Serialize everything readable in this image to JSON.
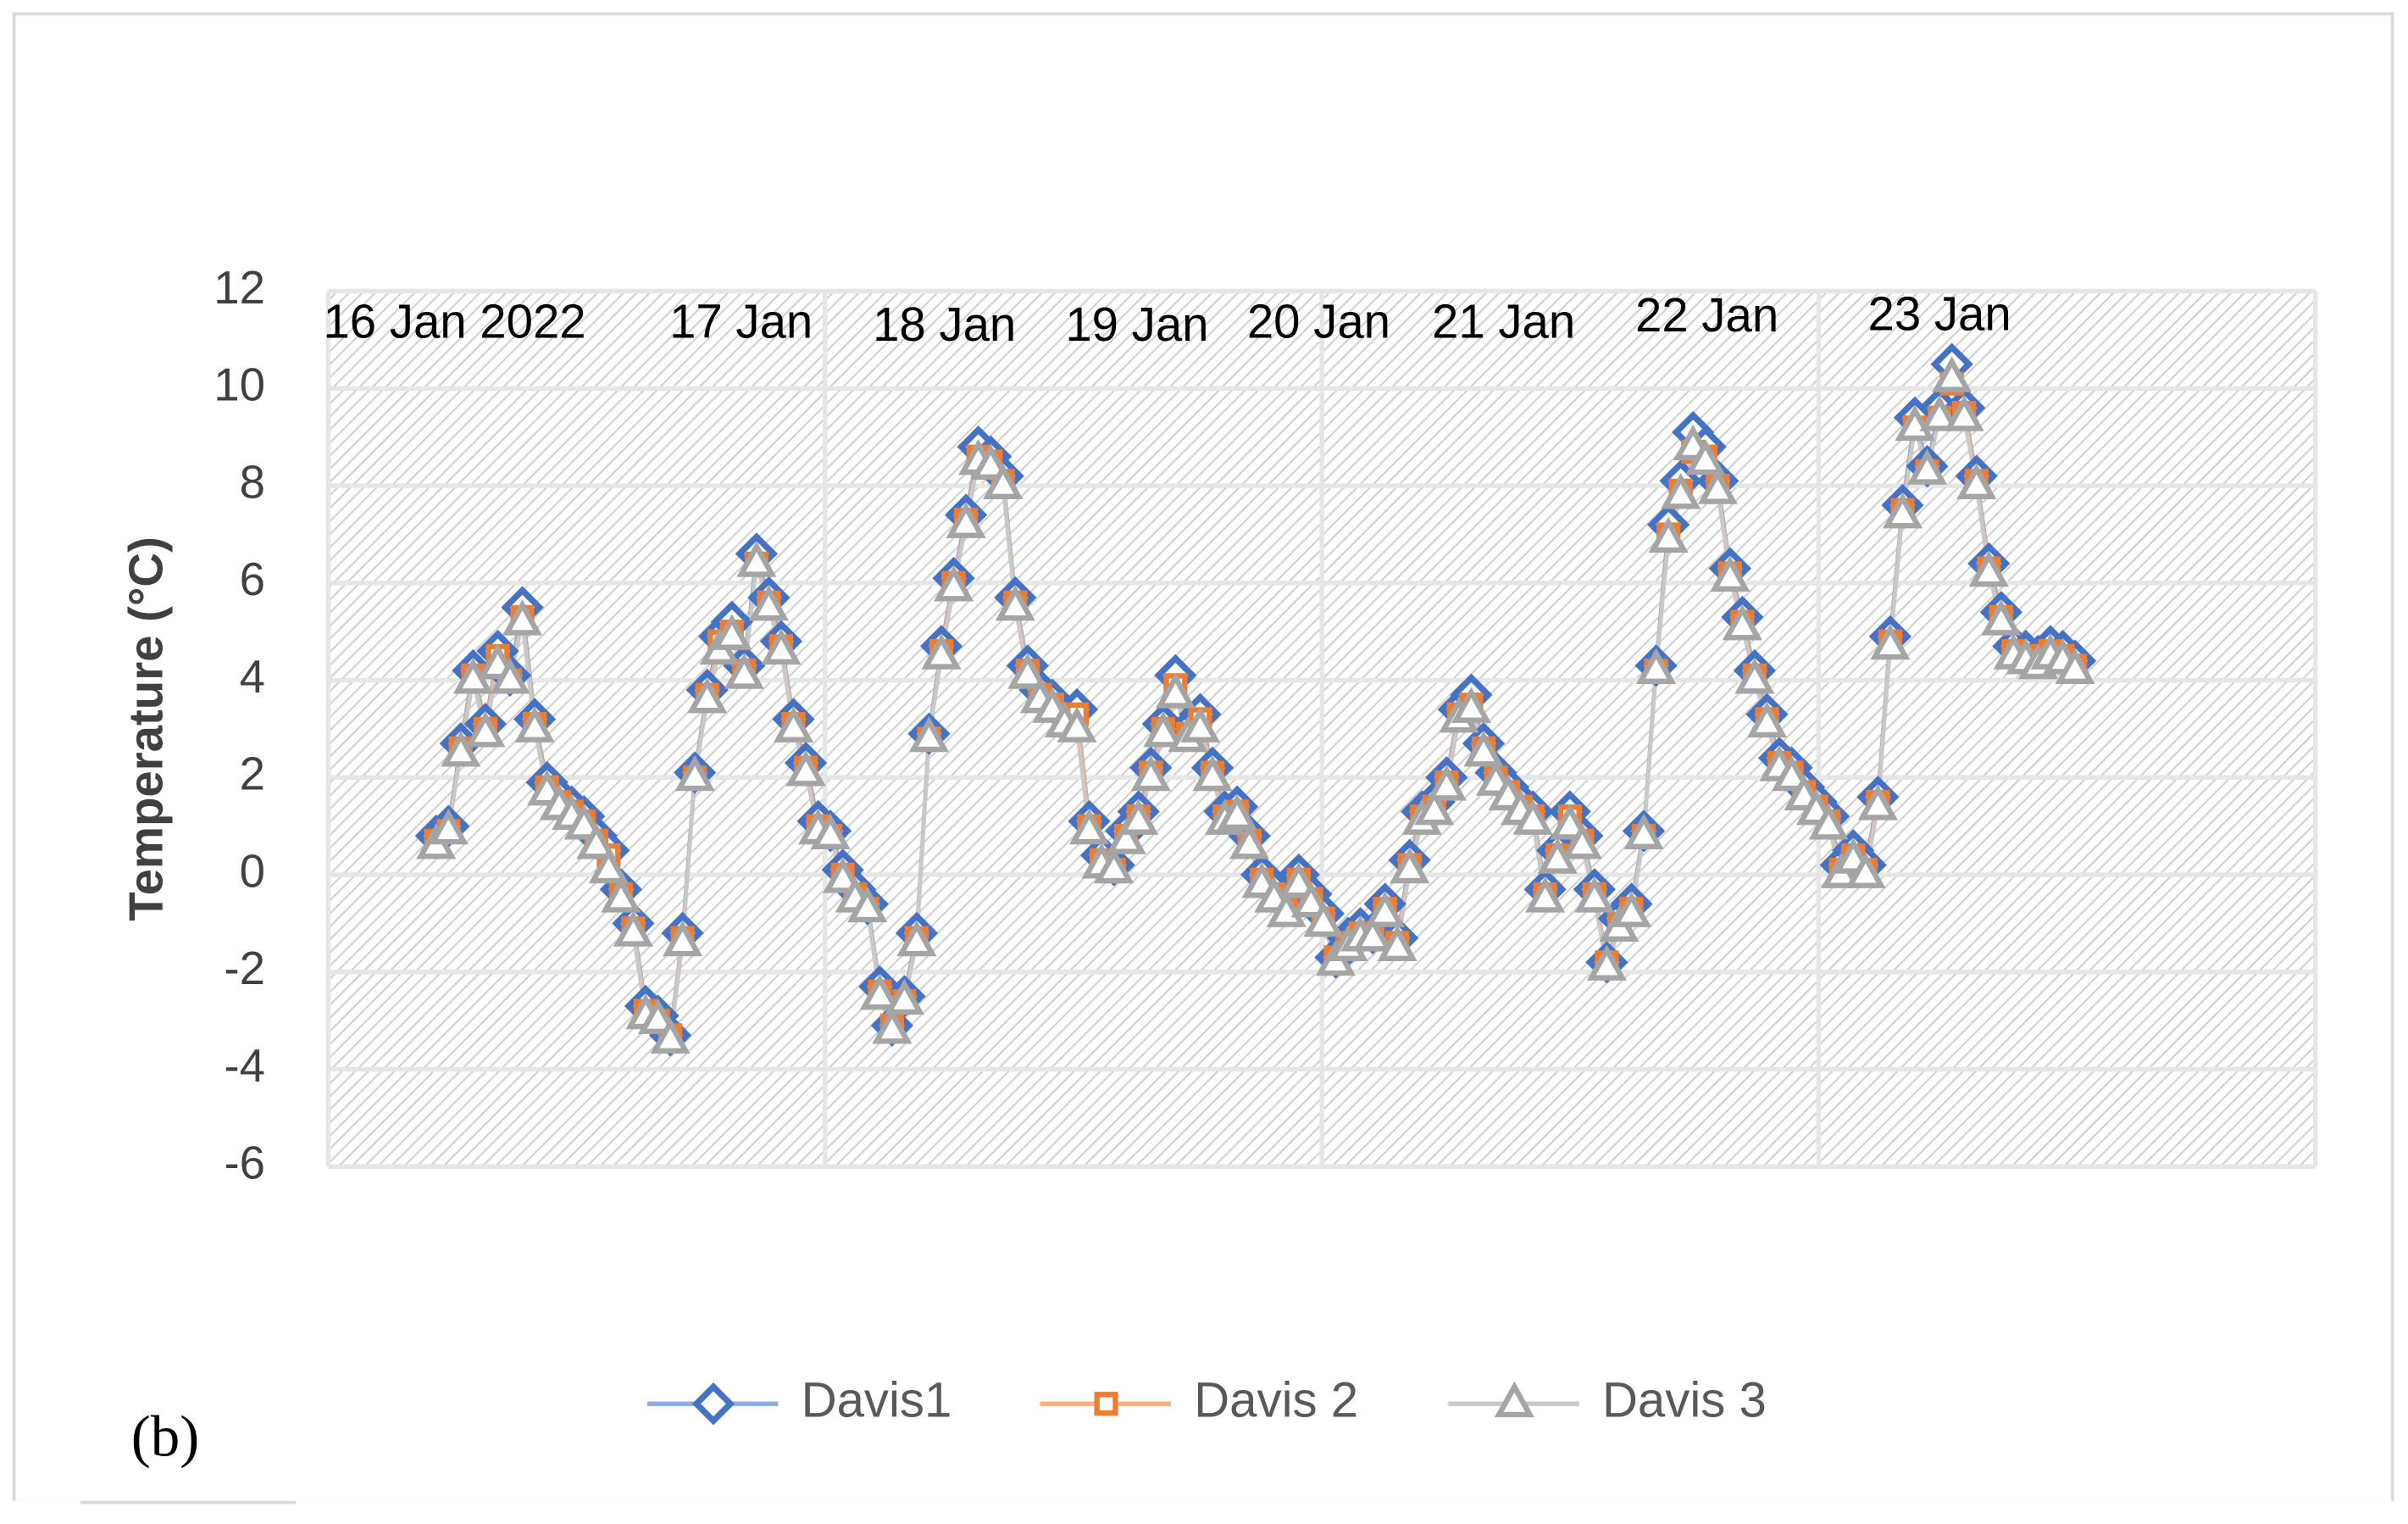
{
  "chart_data": {
    "type": "line",
    "y_label": "Temperature (°C)",
    "panel_label": "(b)",
    "annotations": [
      "16 Jan 2022",
      "17 Jan",
      "18 Jan",
      "19 Jan",
      "20 Jan",
      "21 Jan",
      "22 Jan",
      "23 Jan"
    ],
    "x": [
      0,
      1,
      2,
      3,
      4,
      5,
      6,
      7,
      8,
      9,
      10,
      11,
      12,
      13,
      14,
      15,
      16,
      17,
      18,
      19,
      20,
      21,
      22,
      23,
      24,
      25,
      26,
      27,
      28,
      29,
      30,
      31,
      32,
      33,
      34,
      35,
      36,
      37,
      38,
      39,
      40,
      41,
      42,
      43,
      44,
      45,
      46,
      47,
      48,
      49,
      50,
      51,
      52,
      53,
      54,
      55,
      56,
      57,
      58,
      59,
      60,
      61,
      62,
      63,
      64,
      65,
      66,
      67,
      68,
      69,
      70,
      71,
      72,
      73,
      74,
      75,
      76,
      77,
      78,
      79,
      80,
      81,
      82,
      83,
      84,
      85,
      86,
      87,
      88,
      89,
      90,
      91,
      92,
      93,
      94,
      95,
      96,
      97,
      98,
      99,
      100,
      101,
      102,
      103,
      104,
      105,
      106,
      107,
      108,
      109,
      110,
      111,
      112,
      113,
      114,
      115,
      116,
      117,
      118,
      119,
      120,
      121,
      122,
      123,
      124,
      125,
      126,
      127,
      128,
      129,
      130,
      131,
      132,
      133
    ],
    "xlim": [
      -8.75,
      152.5
    ],
    "xticks": [
      -8.75,
      31.56,
      71.88,
      112.19,
      152.5
    ],
    "ylim": [
      -6,
      12
    ],
    "yticks": [
      -6,
      -4,
      -2,
      0,
      2,
      4,
      6,
      8,
      10,
      12
    ],
    "grid": true,
    "legend": "bottom",
    "series": [
      {
        "name": "Davis1",
        "color": "#4472c4",
        "line_color": "#8faadc",
        "marker": "diamond",
        "values": [
          0.8,
          1.0,
          2.7,
          4.2,
          3.1,
          4.6,
          4.1,
          5.5,
          3.2,
          1.9,
          1.6,
          1.4,
          1.2,
          0.8,
          0.5,
          -0.3,
          -1.0,
          -2.7,
          -2.9,
          -3.3,
          -1.2,
          2.1,
          3.8,
          4.9,
          5.2,
          4.3,
          6.6,
          5.7,
          4.8,
          3.2,
          2.3,
          1.1,
          0.9,
          0.1,
          -0.3,
          -0.6,
          -2.3,
          -3.1,
          -2.5,
          -1.2,
          2.9,
          4.7,
          6.1,
          7.4,
          8.8,
          8.6,
          8.2,
          5.7,
          4.3,
          3.8,
          3.6,
          3.3,
          3.4,
          1.1,
          0.4,
          0.2,
          0.9,
          1.3,
          2.2,
          3.1,
          4.1,
          3.0,
          3.3,
          2.2,
          1.3,
          1.4,
          0.8,
          0.0,
          -0.3,
          -0.6,
          0.0,
          -0.4,
          -0.8,
          -1.7,
          -1.3,
          -1.1,
          -1.2,
          -0.6,
          -1.3,
          0.3,
          1.3,
          1.5,
          2.0,
          3.4,
          3.7,
          2.7,
          2.1,
          1.8,
          1.5,
          1.3,
          -0.3,
          0.5,
          1.3,
          0.8,
          -0.3,
          -1.8,
          -0.9,
          -0.6,
          0.9,
          4.3,
          7.2,
          8.1,
          9.1,
          8.8,
          8.1,
          6.3,
          5.3,
          4.2,
          3.3,
          2.4,
          2.2,
          1.8,
          1.5,
          1.2,
          0.2,
          0.5,
          0.2,
          1.6,
          4.9,
          7.6,
          9.4,
          8.4,
          9.6,
          10.5,
          9.6,
          8.2,
          6.4,
          5.4,
          4.7,
          4.6,
          4.5,
          4.7,
          4.6,
          4.4
        ]
      },
      {
        "name": "Davis 2",
        "color": "#ed7d31",
        "line_color": "#f4b183",
        "marker": "square",
        "values": [
          0.7,
          0.9,
          2.6,
          4.1,
          3.0,
          4.5,
          4.0,
          5.3,
          3.1,
          1.8,
          1.5,
          1.3,
          1.1,
          0.7,
          0.4,
          -0.4,
          -1.1,
          -2.8,
          -3.0,
          -3.3,
          -1.3,
          2.0,
          3.7,
          4.8,
          5.0,
          4.2,
          6.4,
          5.6,
          4.7,
          3.1,
          2.2,
          1.0,
          0.8,
          0.0,
          -0.4,
          -0.7,
          -2.4,
          -3.1,
          -2.6,
          -1.3,
          2.8,
          4.6,
          6.0,
          7.3,
          8.6,
          8.5,
          8.1,
          5.6,
          4.2,
          3.7,
          3.5,
          3.2,
          3.3,
          1.0,
          0.3,
          0.1,
          0.8,
          1.2,
          2.1,
          3.0,
          3.9,
          2.9,
          3.2,
          2.1,
          1.2,
          1.3,
          0.7,
          -0.1,
          -0.4,
          -0.7,
          -0.1,
          -0.5,
          -0.9,
          -1.7,
          -1.4,
          -1.2,
          -1.2,
          -0.7,
          -1.4,
          0.2,
          1.2,
          1.4,
          1.9,
          3.3,
          3.5,
          2.6,
          2.0,
          1.7,
          1.4,
          1.2,
          -0.4,
          0.4,
          1.2,
          0.7,
          -0.4,
          -1.8,
          -1.0,
          -0.7,
          0.8,
          4.2,
          7.0,
          7.9,
          8.7,
          8.6,
          8.0,
          6.2,
          5.2,
          4.1,
          3.2,
          2.3,
          2.1,
          1.7,
          1.4,
          1.1,
          0.1,
          0.4,
          0.1,
          1.5,
          4.8,
          7.5,
          9.2,
          8.3,
          9.4,
          10.1,
          9.5,
          8.1,
          6.3,
          5.3,
          4.6,
          4.5,
          4.4,
          4.6,
          4.5,
          4.3
        ]
      },
      {
        "name": "Davis 3",
        "color": "#a5a5a5",
        "line_color": "#c9c9c9",
        "marker": "triangle",
        "values": [
          0.6,
          0.9,
          2.5,
          4.0,
          2.9,
          4.3,
          4.0,
          5.2,
          3.0,
          1.7,
          1.4,
          1.2,
          1.0,
          0.6,
          0.1,
          -0.5,
          -1.2,
          -2.9,
          -3.0,
          -3.4,
          -1.4,
          2.0,
          3.6,
          4.6,
          4.9,
          4.1,
          6.4,
          5.5,
          4.6,
          3.0,
          2.1,
          0.9,
          0.8,
          -0.1,
          -0.5,
          -0.7,
          -2.5,
          -3.2,
          -2.6,
          -1.4,
          2.8,
          4.5,
          5.9,
          7.2,
          8.5,
          8.4,
          8.0,
          5.5,
          4.1,
          3.6,
          3.4,
          3.1,
          3.0,
          0.9,
          0.2,
          0.1,
          0.7,
          1.1,
          2.0,
          2.9,
          3.7,
          2.8,
          3.0,
          2.0,
          1.1,
          1.2,
          0.6,
          -0.2,
          -0.5,
          -0.8,
          -0.2,
          -0.6,
          -1.0,
          -1.8,
          -1.5,
          -1.3,
          -1.3,
          -0.8,
          -1.5,
          0.1,
          1.1,
          1.3,
          1.8,
          3.2,
          3.4,
          2.5,
          1.9,
          1.6,
          1.3,
          1.1,
          -0.5,
          0.3,
          1.0,
          0.6,
          -0.5,
          -1.9,
          -1.1,
          -0.8,
          0.8,
          4.2,
          6.9,
          7.8,
          8.8,
          8.5,
          7.9,
          6.1,
          5.1,
          4.0,
          3.1,
          2.2,
          2.0,
          1.6,
          1.3,
          1.0,
          0.0,
          0.3,
          0.0,
          1.4,
          4.7,
          7.4,
          9.2,
          8.3,
          9.4,
          10.2,
          9.4,
          8.0,
          6.2,
          5.2,
          4.5,
          4.4,
          4.3,
          4.5,
          4.4,
          4.2
        ]
      }
    ]
  }
}
